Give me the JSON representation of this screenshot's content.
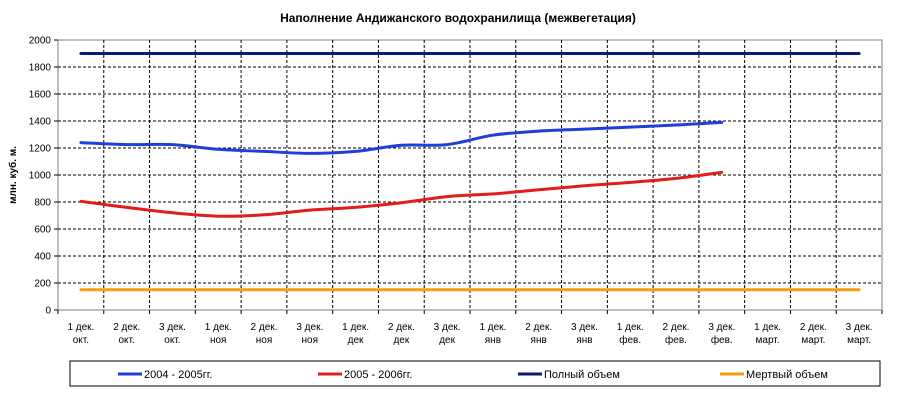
{
  "chart_data": {
    "type": "line",
    "title": "Наполнение Андижанского водохранилища (межвегетация)",
    "ylabel": "млн. куб. м.",
    "xlabel": "",
    "ylim": [
      0,
      2000
    ],
    "yticks": [
      0,
      200,
      400,
      600,
      800,
      1000,
      1200,
      1400,
      1600,
      1800,
      2000
    ],
    "grid": true,
    "legend_position": "bottom",
    "categories": [
      [
        "1 дек.",
        "окт."
      ],
      [
        "2 дек.",
        "окт."
      ],
      [
        "3 дек.",
        "окт."
      ],
      [
        "1 дек.",
        "ноя"
      ],
      [
        "2 дек.",
        "ноя"
      ],
      [
        "3 дек.",
        "ноя"
      ],
      [
        "1 дек.",
        "дек"
      ],
      [
        "2 дек.",
        "дек"
      ],
      [
        "3 дек.",
        "дек"
      ],
      [
        "1 дек.",
        "янв"
      ],
      [
        "2 дек.",
        "янв"
      ],
      [
        "3 дек.",
        "янв"
      ],
      [
        "1 дек.",
        "фев."
      ],
      [
        "2 дек.",
        "фев."
      ],
      [
        "3 дек.",
        "фев."
      ],
      [
        "1 дек.",
        "март."
      ],
      [
        "2 дек.",
        "март."
      ],
      [
        "3 дек.",
        "март."
      ]
    ],
    "series": [
      {
        "name": "2004 - 2005гг.",
        "color": "#1f3fd6",
        "values": [
          1240,
          1225,
          1225,
          1190,
          1175,
          1160,
          1175,
          1220,
          1225,
          1295,
          1325,
          1340,
          1355,
          1370,
          1390,
          null,
          null,
          null
        ]
      },
      {
        "name": "2005 - 2006гг.",
        "color": "#e31b1b",
        "values": [
          805,
          760,
          720,
          695,
          705,
          740,
          760,
          795,
          840,
          860,
          890,
          920,
          945,
          975,
          1020,
          null,
          null,
          null
        ]
      },
      {
        "name": "Полный объем",
        "color": "#0b1a7a",
        "values": [
          1900,
          1900,
          1900,
          1900,
          1900,
          1900,
          1900,
          1900,
          1900,
          1900,
          1900,
          1900,
          1900,
          1900,
          1900,
          1900,
          1900,
          1900
        ]
      },
      {
        "name": "Мертвый объем",
        "color": "#f5a00a",
        "values": [
          150,
          150,
          150,
          150,
          150,
          150,
          150,
          150,
          150,
          150,
          150,
          150,
          150,
          150,
          150,
          150,
          150,
          150
        ]
      }
    ]
  }
}
